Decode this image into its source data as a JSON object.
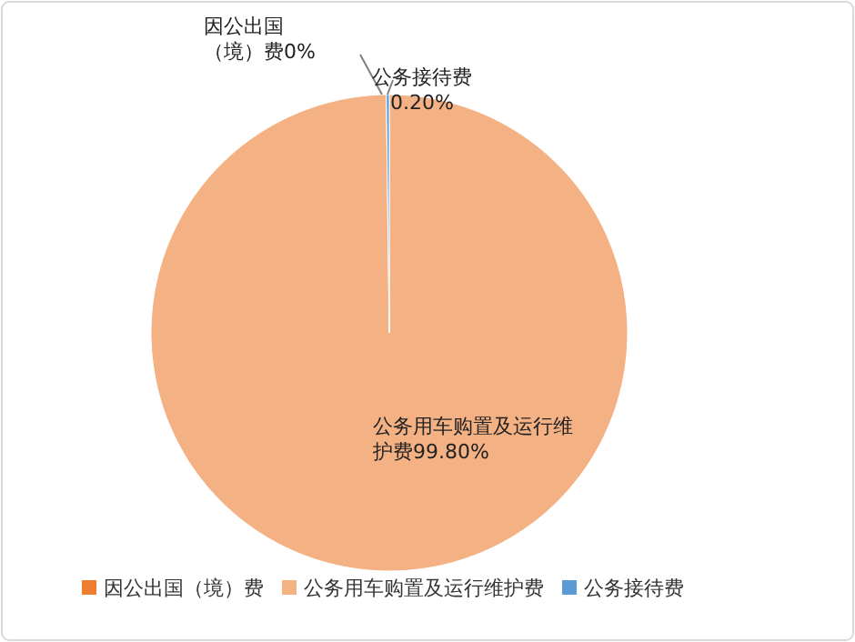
{
  "chart_data": {
    "type": "pie",
    "categories": [
      "因公出国（境）费",
      "公务用车购置及运行维护费",
      "公务接待费"
    ],
    "values": [
      0,
      99.8,
      0.2
    ],
    "colors": [
      "#ed7d31",
      "#f4b183",
      "#5b9bd5"
    ],
    "value_labels": [
      "因公出国（境）费0%",
      "公务用车购置及运行维护费99.80%",
      "公务接待费0.20%"
    ],
    "legend": "bottom"
  }
}
